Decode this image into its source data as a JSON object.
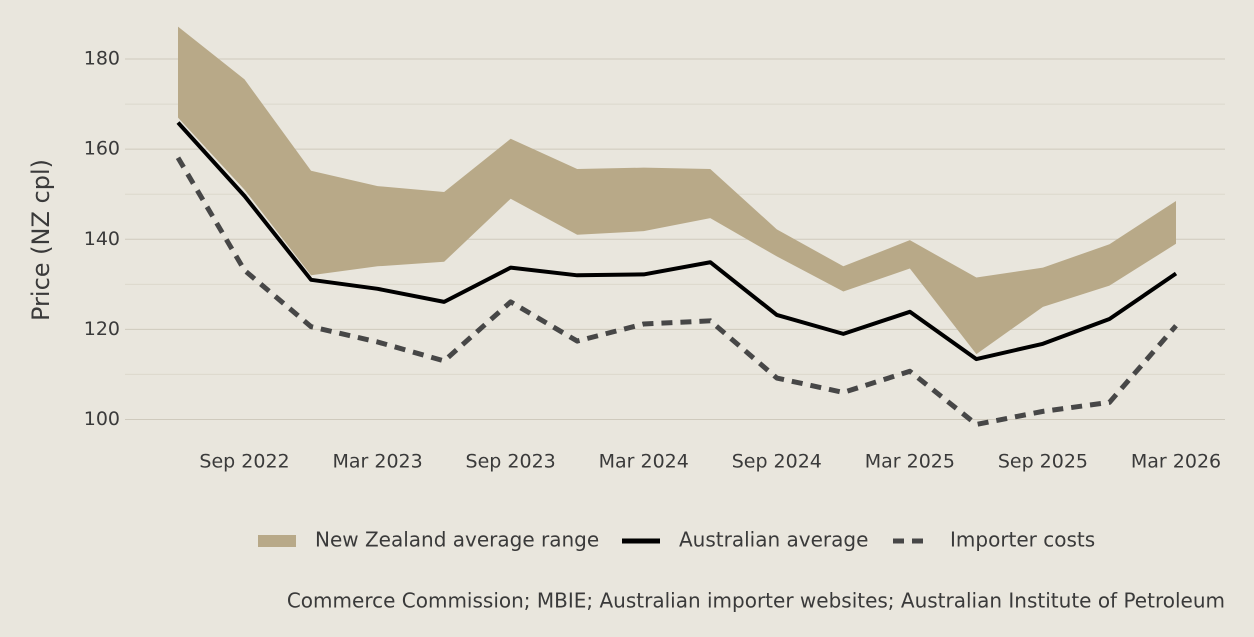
{
  "chart_data": {
    "type": "line",
    "y_label": "Price (NZ cpl)",
    "source": "Commerce Commission; MBIE; Australian importer websites; Australian Institute of Petroleum",
    "categories": [
      null,
      "Sep 2022",
      null,
      "Mar 2023",
      null,
      "Sep 2023",
      null,
      "Mar 2024",
      null,
      "Sep 2024",
      null,
      "Mar 2025",
      null,
      "Sep 2025",
      null,
      "Mar 2026"
    ],
    "ylim": [
      95,
      192
    ],
    "yticks": [
      100,
      120,
      140,
      160,
      180
    ],
    "minor_yticks": [
      110,
      130,
      150,
      170
    ],
    "grid": true,
    "legend": "bottom",
    "series": [
      {
        "name": "New Zealand average range",
        "type": "range",
        "color": "#b8a988",
        "upper": [
          187.2,
          175.5,
          155.2,
          151.8,
          150.5,
          162.3,
          155.6,
          155.9,
          155.6,
          142.2,
          134,
          139.8,
          131.5,
          133.7,
          138.9,
          148.5
        ],
        "lower": [
          167,
          151,
          132,
          134,
          135,
          149,
          141,
          141.8,
          144.7,
          136.2,
          128.4,
          133.5,
          114.5,
          125,
          129.7,
          139
        ]
      },
      {
        "name": "Australian average",
        "type": "line",
        "color": "#000000",
        "dash": false,
        "values": [
          165.9,
          149.6,
          131,
          129,
          126.1,
          133.7,
          132,
          132.2,
          134.9,
          123.2,
          119,
          123.9,
          113.4,
          116.8,
          122.3,
          132.4
        ]
      },
      {
        "name": "Importer costs",
        "type": "line",
        "color": "#474747",
        "dash": true,
        "values": [
          158.1,
          133.1,
          120.6,
          117.2,
          113,
          126.1,
          117.4,
          121.2,
          121.9,
          109.2,
          106,
          110.7,
          98.9,
          101.8,
          103.8,
          120.8
        ]
      }
    ]
  }
}
